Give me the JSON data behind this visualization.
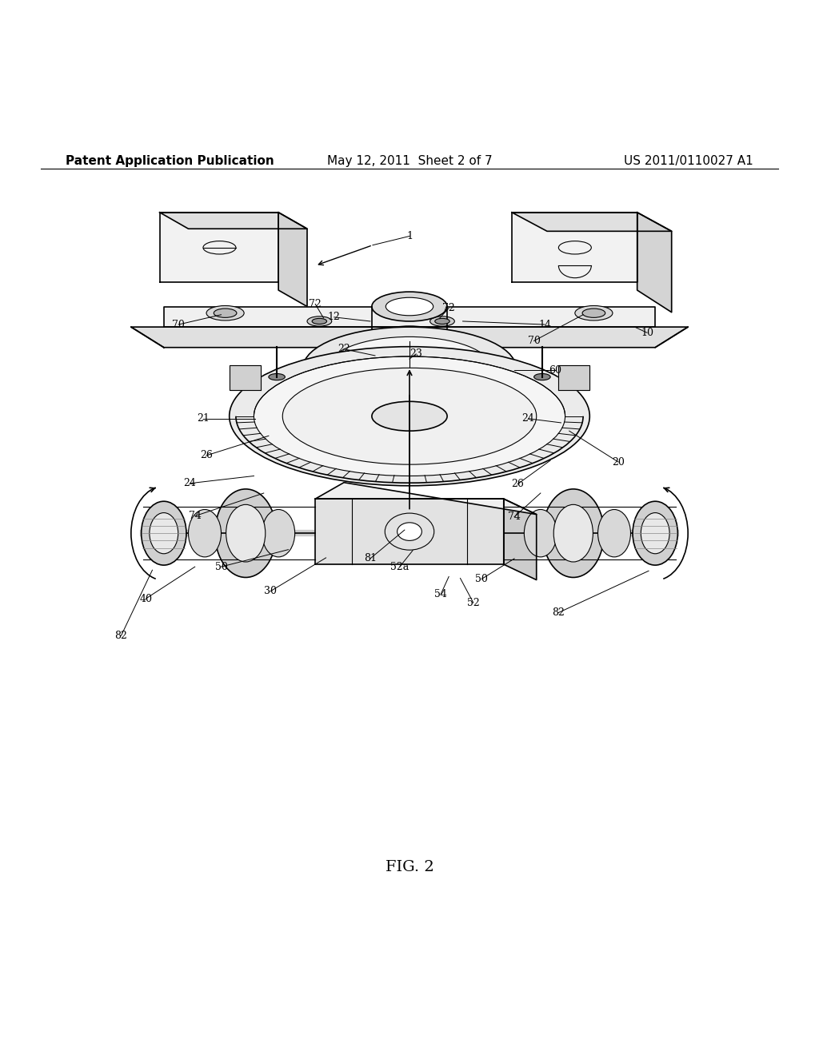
{
  "header_left": "Patent Application Publication",
  "header_center": "May 12, 2011  Sheet 2 of 7",
  "header_right": "US 2011/0110027 A1",
  "figure_label": "FIG. 2",
  "background_color": "#ffffff",
  "line_color": "#000000",
  "header_fontsize": 11,
  "figure_label_fontsize": 14
}
